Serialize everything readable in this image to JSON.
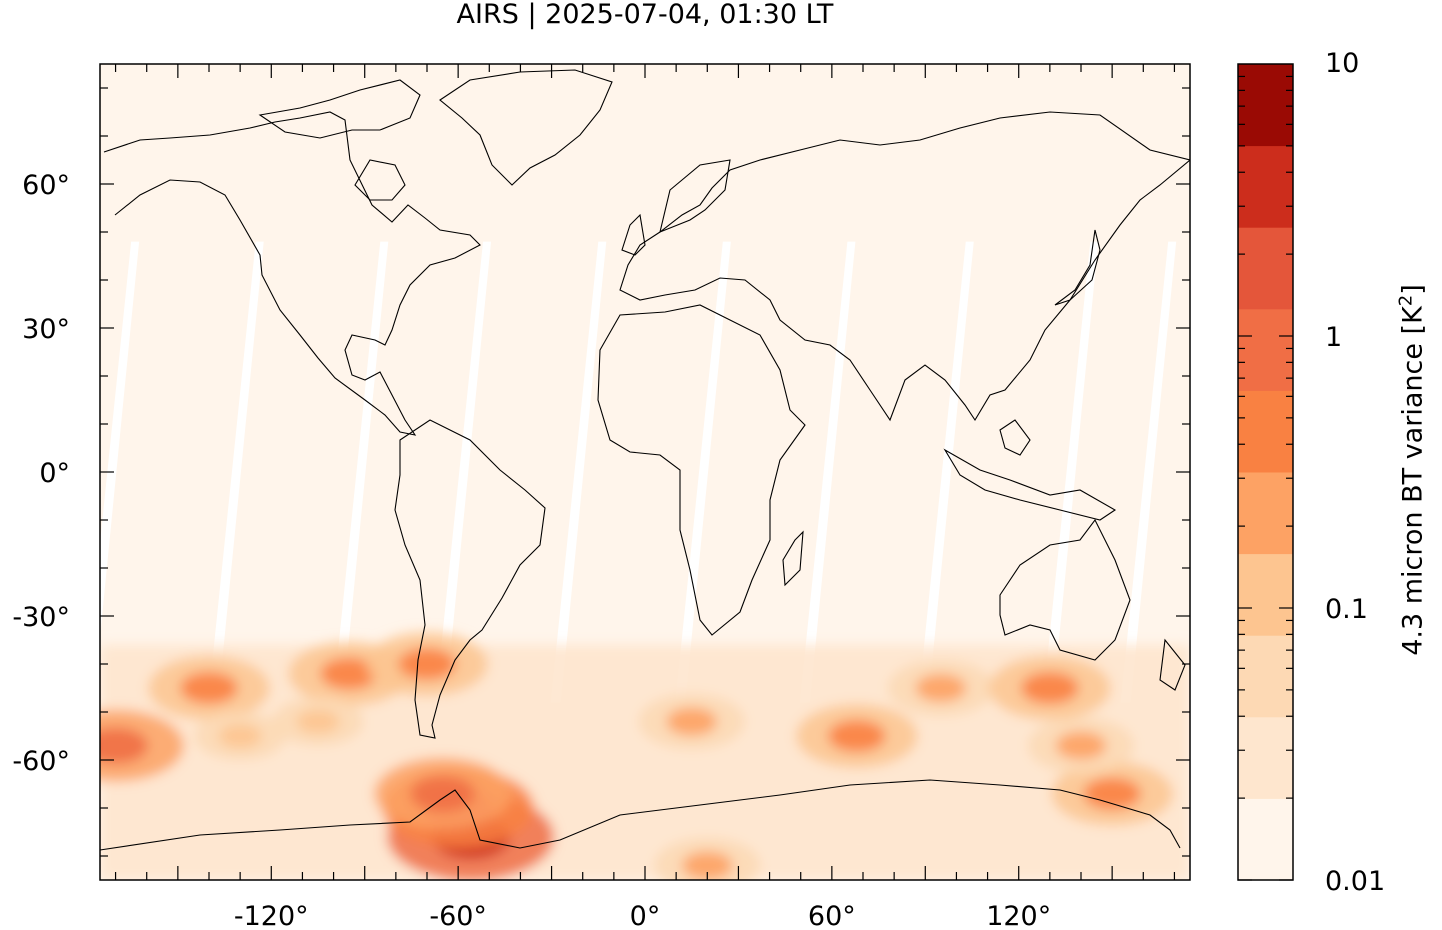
{
  "title": "AIRS | 2025-07-04, 01:30 LT",
  "map": {
    "projection": "plate-carree",
    "lon_range": [
      -175,
      175
    ],
    "lat_range": [
      -85,
      85
    ],
    "lat_ticks": [
      {
        "value": 60,
        "label": "60°"
      },
      {
        "value": 30,
        "label": "30°"
      },
      {
        "value": 0,
        "label": "0°"
      },
      {
        "value": -30,
        "label": "-30°"
      },
      {
        "value": -60,
        "label": "-60°"
      }
    ],
    "lon_ticks": [
      {
        "value": -120,
        "label": "-120°"
      },
      {
        "value": -60,
        "label": "-60°"
      },
      {
        "value": 0,
        "label": "0°"
      },
      {
        "value": 60,
        "label": "60°"
      },
      {
        "value": 120,
        "label": "120°"
      }
    ],
    "background_color": "#fff5eb",
    "coastline_color": "#000000",
    "swath_gaps_color": "#ffffff",
    "field_description_note": null
  },
  "hotspots": [
    {
      "lon": -56,
      "lat": -76,
      "level": 8
    },
    {
      "lon": -60,
      "lat": -70,
      "level": 7
    },
    {
      "lon": -65,
      "lat": -67,
      "level": 6
    },
    {
      "lon": -170,
      "lat": -57,
      "level": 6
    },
    {
      "lon": -140,
      "lat": -45,
      "level": 5
    },
    {
      "lon": -95,
      "lat": -42,
      "level": 5
    },
    {
      "lon": -70,
      "lat": -40,
      "level": 5
    },
    {
      "lon": 15,
      "lat": -52,
      "level": 4
    },
    {
      "lon": 68,
      "lat": -55,
      "level": 5
    },
    {
      "lon": 95,
      "lat": -45,
      "level": 4
    },
    {
      "lon": 130,
      "lat": -45,
      "level": 5
    },
    {
      "lon": 150,
      "lat": -67,
      "level": 5
    },
    {
      "lon": 140,
      "lat": -57,
      "level": 4
    },
    {
      "lon": 20,
      "lat": -82,
      "level": 4
    },
    {
      "lon": -105,
      "lat": -52,
      "level": 3
    },
    {
      "lon": -130,
      "lat": -55,
      "level": 3
    }
  ],
  "colorbar": {
    "label_prefix": "4.3 micron BT variance [K",
    "label_sup": "2",
    "label_suffix": "]",
    "scale": "log",
    "min": 0.01,
    "max": 10,
    "tick_labels": [
      {
        "value": 10,
        "label": "10"
      },
      {
        "value": 1,
        "label": "1"
      },
      {
        "value": 0.1,
        "label": "0.1"
      },
      {
        "value": 0.01,
        "label": "0.01"
      }
    ],
    "levels": [
      {
        "color": "#fff5eb"
      },
      {
        "color": "#fee6ce"
      },
      {
        "color": "#fdd9b4"
      },
      {
        "color": "#fdc590"
      },
      {
        "color": "#fda264"
      },
      {
        "color": "#f98142"
      },
      {
        "color": "#f06e45"
      },
      {
        "color": "#e4563a"
      },
      {
        "color": "#cc2d1c"
      },
      {
        "color": "#9a0a04"
      }
    ]
  }
}
